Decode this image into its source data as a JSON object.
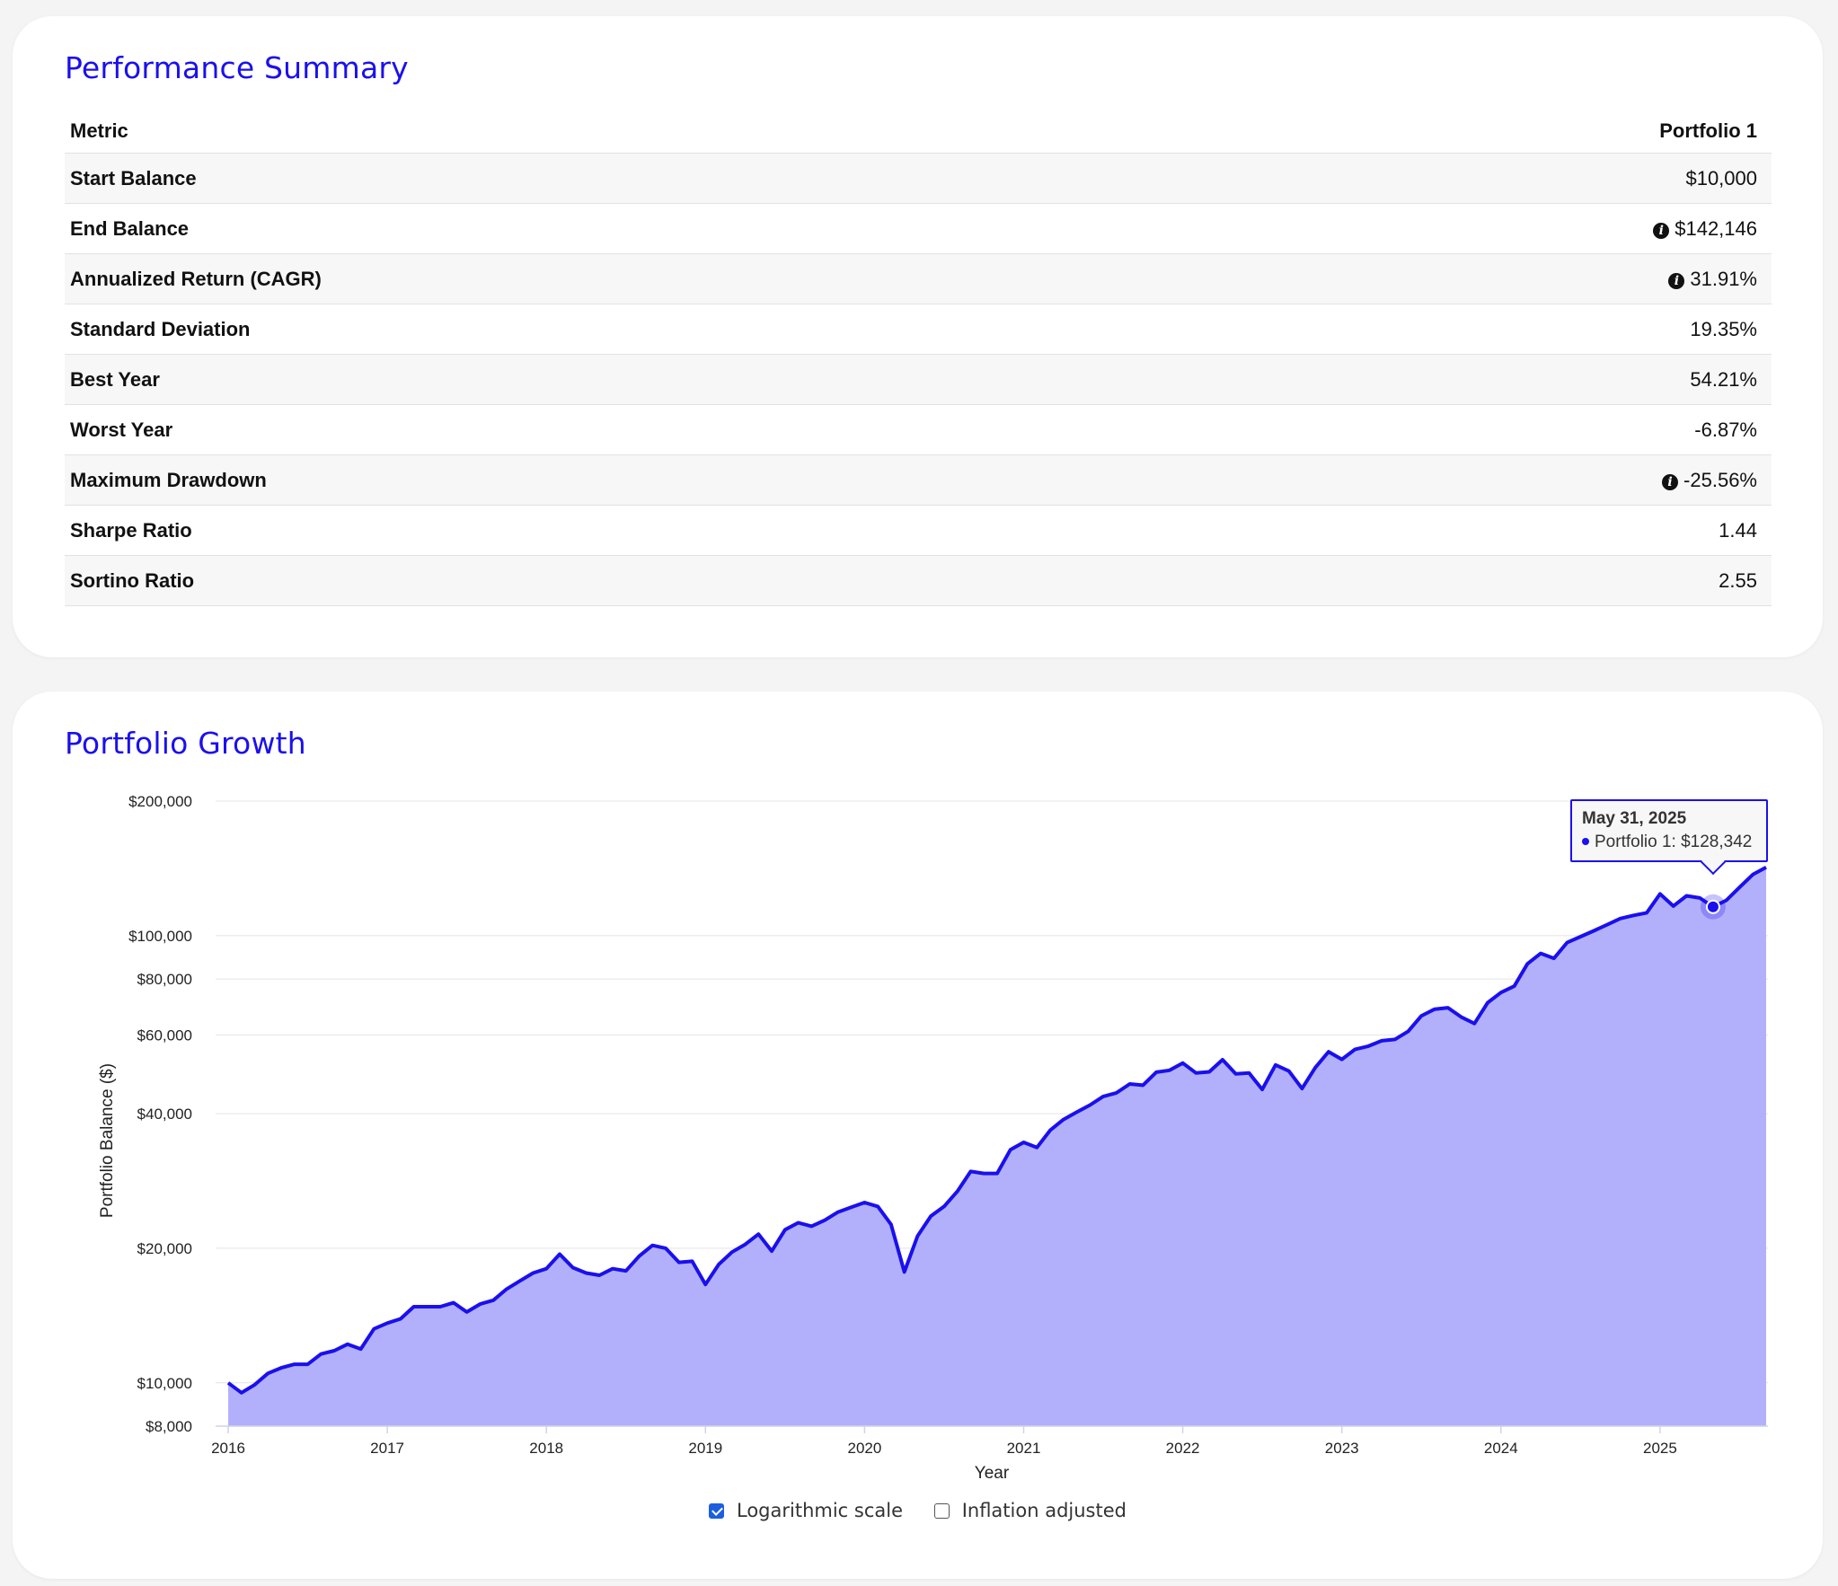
{
  "summary": {
    "title": "Performance Summary",
    "columns": [
      "Metric",
      "Portfolio 1"
    ],
    "rows": [
      {
        "label": "Start Balance",
        "value": "$10,000",
        "info": false
      },
      {
        "label": "End Balance",
        "value": "$142,146",
        "info": true
      },
      {
        "label": "Annualized Return (CAGR)",
        "value": "31.91%",
        "info": true
      },
      {
        "label": "Standard Deviation",
        "value": "19.35%",
        "info": false
      },
      {
        "label": "Best Year",
        "value": "54.21%",
        "info": false
      },
      {
        "label": "Worst Year",
        "value": "-6.87%",
        "info": false
      },
      {
        "label": "Maximum Drawdown",
        "value": "-25.56%",
        "info": true
      },
      {
        "label": "Sharpe Ratio",
        "value": "1.44",
        "info": false
      },
      {
        "label": "Sortino Ratio",
        "value": "2.55",
        "info": false
      }
    ]
  },
  "growth": {
    "title": "Portfolio Growth",
    "tooltip": {
      "date": "May 31, 2025",
      "text": "Portfolio 1: $128,342"
    },
    "controls": {
      "log_label": "Logarithmic scale",
      "log_checked": true,
      "inflation_label": "Inflation adjusted",
      "inflation_checked": false
    }
  },
  "chart_data": {
    "type": "area",
    "title": "",
    "xlabel": "Year",
    "ylabel": "Portfolio Balance ($)",
    "y_scale": "log",
    "ylim": [
      8000,
      200000
    ],
    "y_ticks": [
      8000,
      10000,
      20000,
      40000,
      60000,
      80000,
      100000,
      200000
    ],
    "y_tick_labels": [
      "$8,000",
      "$10,000",
      "$20,000",
      "$40,000",
      "$60,000",
      "$80,000",
      "$100,000",
      "$200,000"
    ],
    "x_ticks": [
      "2016",
      "2017",
      "2018",
      "2019",
      "2020",
      "2021",
      "2022",
      "2023",
      "2024",
      "2025"
    ],
    "grid": true,
    "legend": "none",
    "colors": {
      "line": "#1a10ee",
      "fill": "#b3b0fb"
    },
    "x_start": "2016-01",
    "x_end": "2025-07",
    "series": [
      {
        "values": [
          10000,
          9500,
          9900,
          10500,
          10800,
          11000,
          11000,
          11600,
          11800,
          12200,
          11900,
          13200,
          13600,
          13900,
          14800,
          14800,
          14800,
          15100,
          14400,
          15000,
          15300,
          16200,
          16900,
          17600,
          18000,
          19400,
          18100,
          17600,
          17400,
          18000,
          17800,
          19200,
          20300,
          20000,
          18600,
          18700,
          16600,
          18400,
          19600,
          20400,
          21500,
          19700,
          22000,
          22800,
          22400,
          23100,
          24100,
          24700,
          25300,
          24800,
          22600,
          17700,
          21300,
          23600,
          24800,
          26800,
          29700,
          29400,
          29400,
          33200,
          34500,
          33600,
          36700,
          38800,
          40300,
          41800,
          43700,
          44500,
          46600,
          46300,
          49500,
          50000,
          51900,
          49300,
          49600,
          52800,
          49100,
          49300,
          45300,
          51400,
          49800,
          45500,
          50700,
          55000,
          52900,
          55700,
          56600,
          58200,
          58600,
          61100,
          66200,
          68500,
          69000,
          65800,
          63600,
          70800,
          74600,
          77100,
          86500,
          91300,
          89000,
          96600,
          99500,
          102500,
          105800,
          109200,
          111000,
          112500,
          124000,
          116500,
          122800,
          121400,
          116000,
          120000,
          128342,
          137000,
          142146
        ]
      }
    ]
  }
}
